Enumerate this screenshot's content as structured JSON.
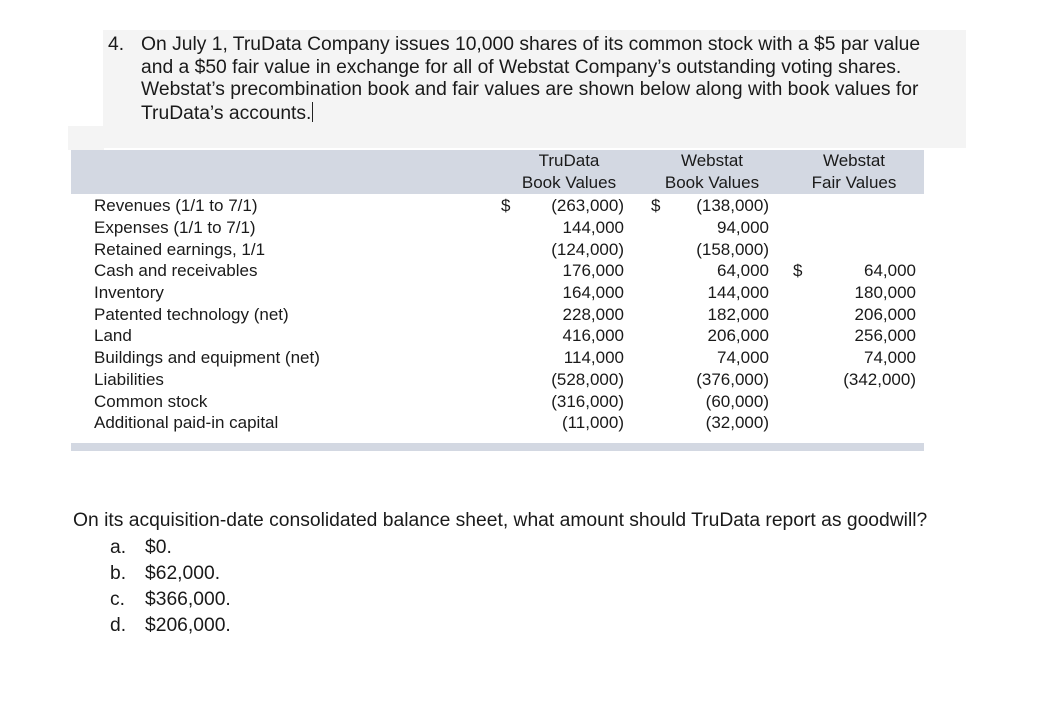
{
  "intro": {
    "number": "4.",
    "text": "On July 1, TruData Company issues 10,000 shares of its common stock with a $5 par value and a $50 fair value in exchange for all of Webstat Company’s outstanding voting shares. Webstat’s precombination book and fair values are shown below along with book values for TruData’s accounts."
  },
  "table": {
    "headers": [
      {
        "line1": "TruData",
        "line2": "Book Values"
      },
      {
        "line1": "Webstat",
        "line2": "Book Values"
      },
      {
        "line1": "Webstat",
        "line2": "Fair Values"
      }
    ],
    "currency_symbol": "$",
    "rows": [
      {
        "label": "Revenues (1/1 to 7/1)",
        "trudata": "(263,000)",
        "webstat_book": "(138,000)",
        "webstat_fair": ""
      },
      {
        "label": "Expenses (1/1 to 7/1)",
        "trudata": "144,000",
        "webstat_book": "94,000",
        "webstat_fair": ""
      },
      {
        "label": "Retained earnings, 1/1",
        "trudata": "(124,000)",
        "webstat_book": "(158,000)",
        "webstat_fair": ""
      },
      {
        "label": "Cash and receivables",
        "trudata": "176,000",
        "webstat_book": "64,000",
        "webstat_fair": "64,000"
      },
      {
        "label": "Inventory",
        "trudata": "164,000",
        "webstat_book": "144,000",
        "webstat_fair": "180,000"
      },
      {
        "label": "Patented technology (net)",
        "trudata": "228,000",
        "webstat_book": "182,000",
        "webstat_fair": "206,000"
      },
      {
        "label": "Land",
        "trudata": "416,000",
        "webstat_book": "206,000",
        "webstat_fair": "256,000"
      },
      {
        "label": "Buildings and equipment (net)",
        "trudata": "114,000",
        "webstat_book": "74,000",
        "webstat_fair": "74,000"
      },
      {
        "label": "Liabilities",
        "trudata": "(528,000)",
        "webstat_book": "(376,000)",
        "webstat_fair": "(342,000)"
      },
      {
        "label": "Common stock",
        "trudata": "(316,000)",
        "webstat_book": "(60,000)",
        "webstat_fair": ""
      },
      {
        "label": "Additional paid-in capital",
        "trudata": "(11,000)",
        "webstat_book": "(32,000)",
        "webstat_fair": ""
      }
    ]
  },
  "question": "On its acquisition-date consolidated balance sheet, what amount should TruData report as goodwill?",
  "choices": [
    {
      "letter": "a.",
      "text": "$0."
    },
    {
      "letter": "b.",
      "text": "$62,000."
    },
    {
      "letter": "c.",
      "text": "$366,000."
    },
    {
      "letter": "d.",
      "text": "$206,000."
    }
  ]
}
